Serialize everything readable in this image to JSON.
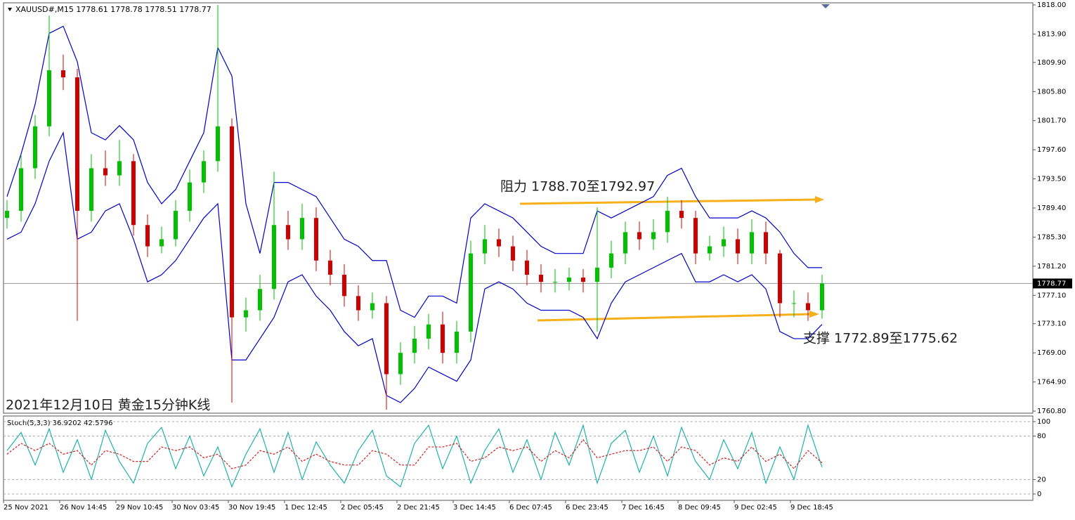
{
  "chart_data": [
    {
      "type": "candlestick",
      "title": "XAUUSD#,M15  1778.61 1778.78 1778.51 1778.77",
      "categories": [
        "25 Nov 2021",
        null,
        null,
        null,
        "26 Nov 14:45",
        null,
        null,
        null,
        "29 Nov 10:45",
        null,
        null,
        null,
        "30 Nov 03:45",
        null,
        null,
        null,
        "30 Nov 19:45",
        null,
        null,
        null,
        "1 Dec 12:45",
        null,
        null,
        null,
        "2 Dec 05:45",
        null,
        null,
        null,
        "2 Dec 21:45",
        null,
        null,
        null,
        "3 Dec 14:45",
        null,
        null,
        null,
        "6 Dec 07:45",
        null,
        null,
        null,
        "6 Dec 23:45",
        null,
        null,
        null,
        "7 Dec 16:45",
        null,
        null,
        null,
        "8 Dec 09:45",
        null,
        null,
        null,
        "9 Dec 02:45",
        null,
        null,
        null,
        "9 Dec 18:45",
        null,
        null
      ],
      "open": [
        1788.0,
        1789.0,
        1795.0,
        1800.9,
        1808.8,
        1807.8,
        1789.0,
        1795.0,
        1794.0,
        1796.0,
        1787.0,
        1784.0,
        1785.0,
        1789.0,
        1793.0,
        1796.0,
        1800.9,
        1774.0,
        1775.0,
        1778.0,
        1787.0,
        1785.0,
        1788.0,
        1782.0,
        1780.0,
        1777.0,
        1775.0,
        1776.0,
        1766.0,
        1769.0,
        1771.0,
        1773.0,
        1769.0,
        1772.0,
        1783.0,
        1785.0,
        1784.0,
        1782.0,
        1780.0,
        1779.0,
        1779.0,
        1779.6,
        1779.0,
        1781.0,
        1783.0,
        1786.0,
        1785.0,
        1786.0,
        1789.0,
        1788.0,
        1783.0,
        1784.0,
        1785.0,
        1783.0,
        1786.0,
        1783.0,
        1776.0,
        1776.0,
        1775.0
      ],
      "high": [
        1790.5,
        1796.8,
        1802.5,
        1816.5,
        1811.0,
        1809.0,
        1797.0,
        1797.5,
        1799.0,
        1797.0,
        1788.5,
        1786.8,
        1790.5,
        1794.8,
        1797.5,
        1818.0,
        1802.0,
        1776.8,
        1780.0,
        1794.5,
        1789.0,
        1790.0,
        1789.5,
        1783.5,
        1781.5,
        1778.5,
        1777.5,
        1777.0,
        1770.5,
        1772.8,
        1774.5,
        1774.8,
        1773.5,
        1784.8,
        1787.0,
        1786.5,
        1785.5,
        1783.5,
        1781.5,
        1780.8,
        1781.0,
        1780.8,
        1789.5,
        1784.8,
        1787.5,
        1787.5,
        1787.8,
        1791.0,
        1790.5,
        1789.0,
        1785.5,
        1786.8,
        1786.5,
        1787.8,
        1787.5,
        1783.5,
        1777.8,
        1777.5,
        1780.0
      ],
      "low": [
        1786.5,
        1787.5,
        1793.5,
        1799.5,
        1806.0,
        1773.5,
        1787.5,
        1792.5,
        1792.5,
        1785.5,
        1782.5,
        1783.0,
        1784.0,
        1787.5,
        1791.5,
        1794.5,
        1762.0,
        1772.0,
        1773.5,
        1776.5,
        1783.5,
        1783.5,
        1780.5,
        1778.5,
        1775.5,
        1773.5,
        1773.8,
        1761.0,
        1764.5,
        1767.5,
        1769.5,
        1767.5,
        1767.5,
        1770.5,
        1781.5,
        1782.5,
        1780.5,
        1778.5,
        1777.5,
        1777.5,
        1777.8,
        1777.5,
        1772.0,
        1779.5,
        1781.5,
        1783.5,
        1783.5,
        1784.5,
        1786.5,
        1781.5,
        1782.0,
        1782.5,
        1781.5,
        1781.5,
        1781.5,
        1774.0,
        1774.0,
        1773.5,
        1773.8
      ],
      "close": [
        1789.0,
        1795.0,
        1800.9,
        1808.8,
        1807.8,
        1789.0,
        1795.0,
        1794.0,
        1796.0,
        1787.0,
        1784.0,
        1785.0,
        1789.0,
        1793.0,
        1796.0,
        1800.9,
        1774.0,
        1775.0,
        1778.0,
        1787.0,
        1785.0,
        1788.0,
        1782.0,
        1780.0,
        1777.0,
        1775.0,
        1776.0,
        1766.0,
        1769.0,
        1771.0,
        1773.0,
        1769.0,
        1772.0,
        1783.0,
        1785.0,
        1784.0,
        1782.0,
        1780.0,
        1779.0,
        1779.0,
        1779.6,
        1779.0,
        1781.0,
        1783.0,
        1786.0,
        1785.0,
        1786.0,
        1789.0,
        1788.0,
        1783.0,
        1784.0,
        1785.0,
        1783.0,
        1786.0,
        1783.0,
        1776.0,
        1776.0,
        1775.0,
        1778.77
      ],
      "up_color": "#00c000",
      "down_color": "#d00000",
      "bands": [
        {
          "color": "#0000c8",
          "values": [
            1791,
            1797,
            1804,
            1814,
            1815,
            1810,
            1800,
            1799,
            1801,
            1799,
            1793,
            1790,
            1792,
            1796,
            1800,
            1812,
            1808,
            1790,
            1783,
            1793,
            1793,
            1792,
            1791,
            1788,
            1785,
            1784,
            1782,
            1782,
            1775,
            1774,
            1777,
            1777,
            1776,
            1788,
            1790,
            1789,
            1788,
            1786,
            1784,
            1783,
            1783,
            1783,
            1789,
            1788,
            1789,
            1790,
            1791,
            1794,
            1795,
            1791,
            1788,
            1788,
            1788,
            1789,
            1788,
            1786,
            1783,
            1781,
            1781
          ]
        },
        {
          "color": "#0000c8",
          "values": [
            1785,
            1786,
            1790,
            1796,
            1800,
            1785,
            1786,
            1789,
            1790,
            1785,
            1779,
            1780,
            1782,
            1785,
            1788,
            1790,
            1768,
            1768,
            1771,
            1774,
            1779,
            1780,
            1777,
            1775,
            1772,
            1770,
            1771,
            1763,
            1762,
            1764,
            1767,
            1766,
            1765,
            1768,
            1778,
            1779,
            1778,
            1776,
            1775,
            1775,
            1775,
            1774,
            1771,
            1776,
            1779,
            1780,
            1781,
            1782,
            1783,
            1779,
            1779,
            1780,
            1779,
            1780,
            1778,
            1772,
            1771,
            1771,
            1773
          ]
        }
      ],
      "current_price": {
        "value": 1778.77,
        "label": "1778.77"
      },
      "ylim": [
        1760.8,
        1818.0
      ],
      "yticks": [
        {
          "value": 1818.0,
          "label": "1818.00"
        },
        {
          "value": 1813.9,
          "label": "1813.90"
        },
        {
          "value": 1809.9,
          "label": "1809.90"
        },
        {
          "value": 1805.8,
          "label": "1805.80"
        },
        {
          "value": 1801.7,
          "label": "1801.70"
        },
        {
          "value": 1797.6,
          "label": "1797.60"
        },
        {
          "value": 1793.5,
          "label": "1793.50"
        },
        {
          "value": 1789.4,
          "label": "1789.40"
        },
        {
          "value": 1785.3,
          "label": "1785.30"
        },
        {
          "value": 1781.2,
          "label": "1781.20"
        },
        {
          "value": 1777.1,
          "label": "1777.10"
        },
        {
          "value": 1773.1,
          "label": "1773.10"
        },
        {
          "value": 1769.0,
          "label": "1769.00"
        },
        {
          "value": 1764.9,
          "label": "1764.90"
        },
        {
          "value": 1760.8,
          "label": "1760.80"
        }
      ],
      "annotations": [
        "阻力 1788.70至1792.97",
        "支撑 1772.89至1775.62",
        "2021年12月10日 黄金15分钟K线"
      ]
    },
    {
      "type": "line",
      "title": "Stoch(5,3,3) 36.9202 42.5796",
      "series": [
        {
          "color": "#20b2aa",
          "values": [
            60,
            85,
            40,
            90,
            30,
            75,
            20,
            88,
            45,
            15,
            70,
            92,
            35,
            80,
            25,
            65,
            10,
            55,
            90,
            30,
            85,
            20,
            72,
            40,
            15,
            60,
            88,
            25,
            10,
            70,
            95,
            35,
            80,
            15,
            60,
            90,
            30,
            75,
            20,
            85,
            40,
            95,
            15,
            70,
            88,
            30,
            80,
            25,
            92,
            45,
            20,
            75,
            35,
            85,
            15,
            65,
            20,
            95,
            37
          ]
        },
        {
          "color": "#d02020",
          "dashed": true,
          "values": [
            55,
            70,
            60,
            70,
            55,
            60,
            40,
            60,
            55,
            45,
            45,
            65,
            60,
            65,
            50,
            55,
            35,
            40,
            60,
            55,
            65,
            45,
            55,
            45,
            40,
            40,
            60,
            55,
            40,
            40,
            65,
            65,
            70,
            45,
            50,
            65,
            60,
            65,
            45,
            60,
            50,
            75,
            50,
            55,
            60,
            60,
            65,
            45,
            65,
            60,
            40,
            50,
            45,
            65,
            45,
            55,
            35,
            60,
            43
          ]
        }
      ],
      "ylim": [
        0,
        100
      ],
      "yticks": [
        0,
        20,
        80,
        100
      ]
    }
  ]
}
